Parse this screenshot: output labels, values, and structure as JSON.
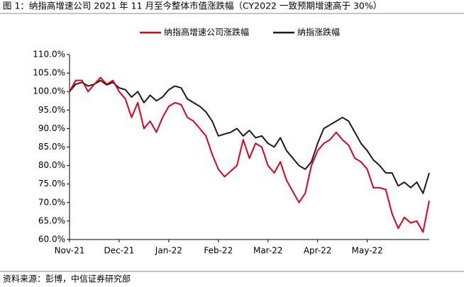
{
  "chart_data": {
    "type": "line",
    "title": "图 1：纳指高增速公司 2021 年 11 月至今整体市值涨跌幅（CY2022 一致预期增速高于 30%）",
    "source": "资料来源：彭博，中信证券研究部",
    "categories": [
      "Nov-21",
      null,
      null,
      null,
      null,
      null,
      null,
      null,
      "Dec-21",
      null,
      null,
      null,
      null,
      null,
      null,
      null,
      "Jan-22",
      null,
      null,
      null,
      null,
      null,
      null,
      null,
      "Feb-22",
      null,
      null,
      null,
      null,
      null,
      null,
      null,
      "Mar-22",
      null,
      null,
      null,
      null,
      null,
      null,
      null,
      "Apr-22",
      null,
      null,
      null,
      null,
      null,
      null,
      null,
      "May-22",
      null,
      null,
      null,
      null,
      null,
      null,
      null,
      null,
      null,
      null
    ],
    "series": [
      {
        "name": "纳指高增速公司涨跌幅",
        "color": "#e0001b",
        "values": [
          100,
          103,
          103,
          100,
          102,
          103.8,
          102,
          103,
          100,
          98,
          93,
          97,
          90,
          92,
          89,
          93,
          96,
          97,
          96.5,
          93,
          92,
          90,
          88,
          83,
          79,
          77,
          78.5,
          80,
          87,
          82,
          86,
          85,
          80,
          78,
          81,
          76,
          73,
          70,
          72.5,
          80,
          84,
          86,
          87,
          89,
          87,
          85.5,
          82,
          81,
          79,
          74,
          74,
          73.5,
          67,
          63,
          66,
          64.5,
          65,
          62,
          70.5
        ]
      },
      {
        "name": "纳指涨跌幅",
        "color": "#231815",
        "values": [
          100,
          102,
          102.5,
          101.5,
          102,
          103,
          101.8,
          102.5,
          101,
          100.5,
          98.5,
          100,
          97,
          99,
          97.5,
          98.5,
          100.5,
          101.5,
          101,
          98,
          97,
          96,
          94.5,
          92,
          88,
          88.5,
          89,
          90,
          88,
          89.5,
          87.5,
          88,
          86,
          85,
          87.5,
          84,
          82,
          80,
          79,
          81,
          86,
          90,
          91,
          92,
          93,
          92,
          89,
          86,
          84,
          81.5,
          80,
          78,
          78,
          74.5,
          75.5,
          74,
          75.5,
          72.5,
          78
        ]
      }
    ],
    "ylim": [
      60,
      110
    ],
    "yticks": [
      {
        "value": 60,
        "label": "60.0%"
      },
      {
        "value": 65,
        "label": "65.0%"
      },
      {
        "value": 70,
        "label": "70.0%"
      },
      {
        "value": 75,
        "label": "75.0%"
      },
      {
        "value": 80,
        "label": "80.0%"
      },
      {
        "value": 85,
        "label": "85.0%"
      },
      {
        "value": 90,
        "label": "90.0%"
      },
      {
        "value": 95,
        "label": "95.0%"
      },
      {
        "value": 100,
        "label": "100.0%"
      },
      {
        "value": 105,
        "label": "105.0%"
      },
      {
        "value": 110,
        "label": "110.0%"
      }
    ],
    "grid": false
  }
}
